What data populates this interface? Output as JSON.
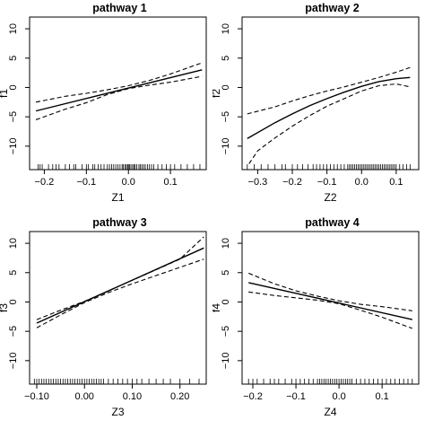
{
  "chart_data": [
    {
      "type": "line",
      "title": "pathway 1",
      "xlabel": "Z1",
      "ylabel": "f1",
      "xlim": [
        -0.235,
        0.185
      ],
      "ylim": [
        -14,
        12
      ],
      "xticks": [
        -0.2,
        -0.1,
        0.0,
        0.1
      ],
      "xtick_labels": [
        "−0.2",
        "−0.1",
        "0.0",
        "0.1"
      ],
      "yticks": [
        -10,
        -5,
        0,
        5,
        10
      ],
      "ytick_labels": [
        "−10",
        "−5",
        "0",
        "5",
        "10"
      ],
      "series": [
        {
          "style": "solid",
          "x": [
            -0.22,
            0.175
          ],
          "y": [
            -4.0,
            3.0
          ]
        },
        {
          "style": "dashed",
          "x": [
            -0.22,
            -0.15,
            -0.1,
            -0.05,
            0.0,
            0.05,
            0.1,
            0.175
          ],
          "y": [
            -2.5,
            -1.5,
            -1.0,
            -0.4,
            0.3,
            1.2,
            2.3,
            4.2
          ]
        },
        {
          "style": "dashed",
          "x": [
            -0.22,
            -0.15,
            -0.1,
            -0.05,
            0.0,
            0.05,
            0.1,
            0.175
          ],
          "y": [
            -5.5,
            -3.7,
            -2.6,
            -1.2,
            -0.2,
            0.4,
            0.9,
            1.9
          ]
        }
      ],
      "rug": [
        -0.215,
        -0.21,
        -0.205,
        -0.19,
        -0.18,
        -0.172,
        -0.165,
        -0.15,
        -0.14,
        -0.13,
        -0.125,
        -0.11,
        -0.1,
        -0.095,
        -0.085,
        -0.08,
        -0.072,
        -0.065,
        -0.058,
        -0.05,
        -0.045,
        -0.04,
        -0.035,
        -0.03,
        -0.025,
        -0.02,
        -0.015,
        -0.012,
        -0.008,
        -0.005,
        -0.002,
        0.0,
        0.003,
        0.006,
        0.01,
        0.013,
        0.016,
        0.02,
        0.025,
        0.028,
        0.032,
        0.036,
        0.04,
        0.045,
        0.05,
        0.055,
        0.06,
        0.07,
        0.08,
        0.09,
        0.1,
        0.11,
        0.125,
        0.14,
        0.155,
        0.17
      ]
    },
    {
      "type": "line",
      "title": "pathway 2",
      "xlabel": "Z2",
      "ylabel": "f2",
      "xlim": [
        -0.345,
        0.165
      ],
      "ylim": [
        -14,
        12
      ],
      "xticks": [
        -0.3,
        -0.2,
        -0.1,
        0.0,
        0.1
      ],
      "xtick_labels": [
        "−0.3",
        "−0.2",
        "−0.1",
        "0.0",
        "0.1"
      ],
      "yticks": [
        -10,
        -5,
        0,
        5,
        10
      ],
      "ytick_labels": [
        "−10",
        "−5",
        "0",
        "5",
        "10"
      ],
      "series": [
        {
          "style": "solid",
          "x": [
            -0.33,
            -0.25,
            -0.2,
            -0.15,
            -0.1,
            -0.05,
            0.0,
            0.05,
            0.1,
            0.14
          ],
          "y": [
            -8.7,
            -6.0,
            -4.5,
            -3.1,
            -1.9,
            -0.8,
            0.2,
            1.0,
            1.5,
            1.7
          ]
        },
        {
          "style": "dashed",
          "x": [
            -0.33,
            -0.25,
            -0.2,
            -0.15,
            -0.1,
            -0.05,
            0.0,
            0.05,
            0.1,
            0.14
          ],
          "y": [
            -4.5,
            -3.3,
            -2.3,
            -1.4,
            -0.6,
            0.1,
            0.9,
            1.7,
            2.6,
            3.4
          ]
        },
        {
          "style": "dashed",
          "x": [
            -0.325,
            -0.3,
            -0.25,
            -0.2,
            -0.15,
            -0.1,
            -0.05,
            0.0,
            0.05,
            0.1,
            0.14
          ],
          "y": [
            -13.0,
            -10.8,
            -8.6,
            -6.6,
            -4.8,
            -3.2,
            -1.9,
            -0.6,
            0.3,
            0.6,
            0.1
          ]
        }
      ],
      "rug": [
        -0.33,
        -0.31,
        -0.29,
        -0.27,
        -0.25,
        -0.23,
        -0.22,
        -0.2,
        -0.185,
        -0.17,
        -0.155,
        -0.14,
        -0.13,
        -0.12,
        -0.11,
        -0.1,
        -0.09,
        -0.08,
        -0.07,
        -0.06,
        -0.05,
        -0.04,
        -0.035,
        -0.03,
        -0.025,
        -0.02,
        -0.015,
        -0.01,
        -0.005,
        0.0,
        0.005,
        0.01,
        0.015,
        0.02,
        0.025,
        0.03,
        0.035,
        0.04,
        0.045,
        0.05,
        0.055,
        0.06,
        0.065,
        0.07,
        0.075,
        0.08,
        0.085,
        0.09,
        0.095,
        0.1,
        0.11,
        0.12,
        0.13,
        0.14
      ]
    },
    {
      "type": "line",
      "title": "pathway 3",
      "xlabel": "Z3",
      "ylabel": "f3",
      "xlim": [
        -0.115,
        0.255
      ],
      "ylim": [
        -14,
        12
      ],
      "xticks": [
        -0.1,
        0.0,
        0.1,
        0.2
      ],
      "xtick_labels": [
        "−0.10",
        "0.00",
        "0.10",
        "0.20"
      ],
      "yticks": [
        -10,
        -5,
        0,
        5,
        10
      ],
      "ytick_labels": [
        "−10",
        "−5",
        "0",
        "5",
        "10"
      ],
      "series": [
        {
          "style": "solid",
          "x": [
            -0.1,
            0.25
          ],
          "y": [
            -3.6,
            9.2
          ]
        },
        {
          "style": "dashed",
          "x": [
            -0.1,
            -0.05,
            0.0,
            0.05,
            0.1,
            0.15,
            0.2,
            0.25
          ],
          "y": [
            -3.0,
            -1.4,
            0.1,
            1.9,
            3.7,
            5.5,
            7.3,
            11.1
          ]
        },
        {
          "style": "dashed",
          "x": [
            -0.1,
            -0.05,
            0.0,
            0.05,
            0.1,
            0.15,
            0.2,
            0.25
          ],
          "y": [
            -4.4,
            -2.2,
            -0.1,
            1.6,
            3.1,
            4.5,
            5.9,
            7.3
          ]
        }
      ],
      "rug": [
        -0.105,
        -0.1,
        -0.095,
        -0.09,
        -0.085,
        -0.08,
        -0.075,
        -0.07,
        -0.065,
        -0.06,
        -0.055,
        -0.05,
        -0.045,
        -0.04,
        -0.035,
        -0.03,
        -0.025,
        -0.02,
        -0.015,
        -0.01,
        -0.005,
        0.0,
        0.005,
        0.01,
        0.015,
        0.02,
        0.025,
        0.03,
        0.035,
        0.04,
        0.05,
        0.06,
        0.07,
        0.08,
        0.09,
        0.1,
        0.11,
        0.12,
        0.135,
        0.15,
        0.165,
        0.18,
        0.2,
        0.22,
        0.24
      ]
    },
    {
      "type": "line",
      "title": "pathway 4",
      "xlabel": "Z4",
      "ylabel": "f4",
      "xlim": [
        -0.225,
        0.185
      ],
      "ylim": [
        -14,
        12
      ],
      "xticks": [
        -0.2,
        -0.1,
        0.0,
        0.1
      ],
      "xtick_labels": [
        "−0.2",
        "−0.1",
        "0.0",
        "0.1"
      ],
      "yticks": [
        -10,
        -5,
        0,
        5,
        10
      ],
      "ytick_labels": [
        "−10",
        "−5",
        "0",
        "5",
        "10"
      ],
      "series": [
        {
          "style": "solid",
          "x": [
            -0.21,
            0.17
          ],
          "y": [
            3.3,
            -3.0
          ]
        },
        {
          "style": "dashed",
          "x": [
            -0.21,
            -0.15,
            -0.1,
            -0.05,
            0.0,
            0.05,
            0.1,
            0.17
          ],
          "y": [
            4.9,
            3.1,
            1.9,
            1.0,
            0.2,
            -0.4,
            -0.8,
            -1.5
          ]
        },
        {
          "style": "dashed",
          "x": [
            -0.21,
            -0.15,
            -0.1,
            -0.05,
            0.0,
            0.05,
            0.1,
            0.17
          ],
          "y": [
            1.7,
            1.1,
            0.7,
            0.3,
            -0.3,
            -1.4,
            -2.6,
            -4.5
          ]
        }
      ],
      "rug": [
        -0.21,
        -0.2,
        -0.19,
        -0.175,
        -0.16,
        -0.15,
        -0.14,
        -0.125,
        -0.11,
        -0.1,
        -0.09,
        -0.08,
        -0.07,
        -0.06,
        -0.05,
        -0.045,
        -0.04,
        -0.035,
        -0.03,
        -0.025,
        -0.02,
        -0.015,
        -0.01,
        -0.005,
        0.0,
        0.005,
        0.01,
        0.015,
        0.02,
        0.025,
        0.03,
        0.04,
        0.05,
        0.06,
        0.07,
        0.08,
        0.09,
        0.1,
        0.11,
        0.12,
        0.13,
        0.14,
        0.15,
        0.16,
        0.17
      ]
    }
  ]
}
